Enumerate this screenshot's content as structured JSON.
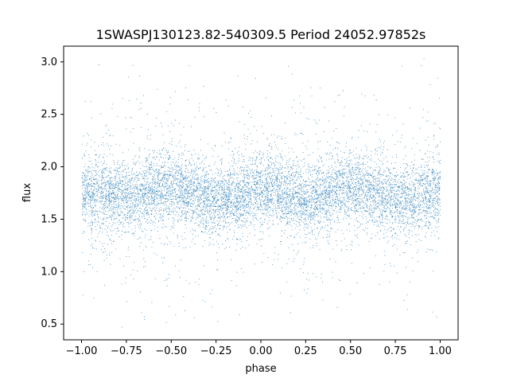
{
  "chart_data": {
    "type": "scatter",
    "title": "1SWASPJ130123.82-540309.5 Period 24052.97852s",
    "xlabel": "phase",
    "ylabel": "flux",
    "xlim": [
      -1.1,
      1.1
    ],
    "ylim": [
      0.35,
      3.15
    ],
    "xticks": [
      -1.0,
      -0.75,
      -0.5,
      -0.25,
      0.0,
      0.25,
      0.5,
      0.75,
      1.0
    ],
    "xtick_labels": [
      "−1.00",
      "−0.75",
      "−0.50",
      "−0.25",
      "0.00",
      "0.25",
      "0.50",
      "0.75",
      "1.00"
    ],
    "yticks": [
      0.5,
      1.0,
      1.5,
      2.0,
      2.5,
      3.0
    ],
    "ytick_labels": [
      "0.5",
      "1.0",
      "1.5",
      "2.0",
      "2.5",
      "3.0"
    ],
    "grid": false,
    "series": [
      {
        "color": "#1f77b4",
        "phase_range": [
          -1.0,
          1.0
        ],
        "profile_phase": [
          -1.0,
          -0.875,
          -0.75,
          -0.625,
          -0.5,
          -0.375,
          -0.25,
          -0.125,
          0.0,
          0.125,
          0.25,
          0.375,
          0.5,
          0.625,
          0.75,
          0.875,
          1.0
        ],
        "profile_flux": [
          1.77,
          1.73,
          1.69,
          1.75,
          1.82,
          1.75,
          1.67,
          1.73,
          1.8,
          1.76,
          1.69,
          1.74,
          1.82,
          1.75,
          1.66,
          1.72,
          1.78
        ],
        "core_scatter_sd": 0.17,
        "flux_range": [
          0.45,
          3.05
        ]
      }
    ]
  }
}
